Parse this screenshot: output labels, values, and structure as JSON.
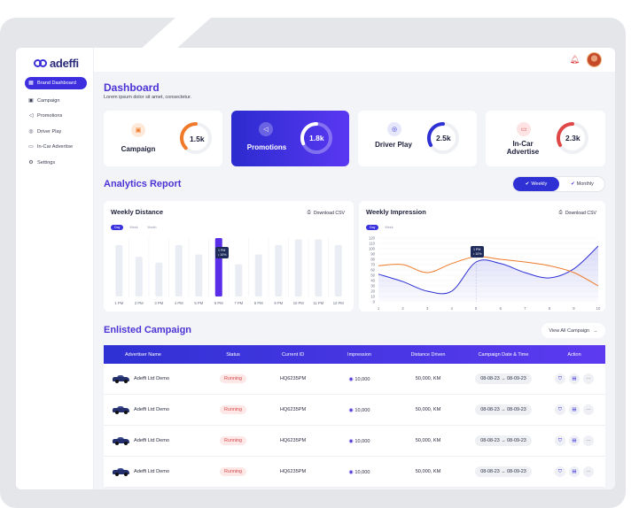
{
  "app": {
    "brand": "adeffi"
  },
  "sidebar": {
    "items": [
      {
        "label": "Brand Dashboard",
        "icon": "grid-icon",
        "active": true
      },
      {
        "label": "Campaign",
        "icon": "campaign-icon"
      },
      {
        "label": "Promotions",
        "icon": "megaphone-icon"
      },
      {
        "label": "Driver Play",
        "icon": "steering-icon"
      },
      {
        "label": "In-Car Advertise",
        "icon": "monitor-icon"
      },
      {
        "label": "Settings",
        "icon": "gear-icon"
      }
    ]
  },
  "header": {
    "title": "Dashboard",
    "subtitle": "Lorem ipsum dolor sit amet, consectetur."
  },
  "stats": [
    {
      "label": "Campaign",
      "value": "1.5k",
      "gauge_fraction": 0.6,
      "color": "#f07a2a"
    },
    {
      "label": "Promotions",
      "value": "1.8k",
      "gauge_fraction": 0.7,
      "color": "#ffffff"
    },
    {
      "label": "Driver Play",
      "value": "2.5k",
      "gauge_fraction": 0.55,
      "color": "#2f31d4"
    },
    {
      "label": "In-Car\nAdvertise",
      "value": "2.3k",
      "gauge_fraction": 0.55,
      "color": "#e04848"
    }
  ],
  "analytics": {
    "title": "Analytics Report",
    "toggle": {
      "weekly": "Weekly",
      "monthly": "Monthly"
    }
  },
  "weekly_distance": {
    "title": "Weekly Distance",
    "download": "Download CSV",
    "pills": [
      "Day",
      "Week",
      "Month"
    ],
    "tooltip": [
      "1 PM",
      "• 10%"
    ]
  },
  "weekly_impression": {
    "title": "Weekly Impression",
    "download": "Download CSV",
    "pills": [
      "Day",
      "Week"
    ],
    "tooltip": [
      "1 PM",
      "• 10%"
    ]
  },
  "chart_data": [
    {
      "type": "bar",
      "categories": [
        "1 PM",
        "2 PM",
        "3 PM",
        "4 PM",
        "5 PM",
        "6 PM",
        "7 PM",
        "8 PM",
        "9 PM",
        "10 PM",
        "11 PM",
        "12 PM"
      ],
      "values": [
        0.88,
        0.68,
        0.58,
        0.88,
        0.72,
        1.0,
        0.55,
        0.72,
        0.88,
        0.98,
        0.98,
        0.88
      ],
      "highlight_index": 5,
      "title": "Weekly Distance",
      "ylim": [
        0,
        1
      ]
    },
    {
      "type": "line",
      "x": [
        1,
        2,
        3,
        4,
        5,
        6,
        7,
        8,
        9,
        10
      ],
      "y_ticks": [
        0,
        10,
        20,
        30,
        40,
        50,
        60,
        70,
        80,
        90,
        100,
        110,
        120
      ],
      "series": [
        {
          "values": [
            52,
            38,
            20,
            20,
            75,
            72,
            55,
            45,
            62,
            105
          ],
          "color": "#2f31d4"
        },
        {
          "values": [
            68,
            70,
            55,
            72,
            85,
            80,
            75,
            68,
            55,
            30
          ],
          "color": "#f07a2a"
        }
      ],
      "title": "Weekly Impression",
      "ylim": [
        0,
        120
      ]
    }
  ],
  "campaigns": {
    "title": "Enlisted Campaign",
    "view_all": "View All Campaign",
    "columns": [
      "Advertiser Name",
      "Status",
      "Current ID",
      "Impression",
      "Distance Driven",
      "Campaign Date & Time",
      "Action"
    ],
    "rows": [
      {
        "name": "Adeffi Ltd Demo",
        "status": "Running",
        "id": "HQ6235PM",
        "impression": "10,000",
        "distance": "50,000, KM",
        "date": "08-08-23 → 08-09-23"
      },
      {
        "name": "Adeffi Ltd Demo",
        "status": "Running",
        "id": "HQ6235PM",
        "impression": "10,000",
        "distance": "50,000, KM",
        "date": "08-08-23 → 08-09-23"
      },
      {
        "name": "Adeffi Ltd Demo",
        "status": "Running",
        "id": "HQ6235PM",
        "impression": "10,000",
        "distance": "50,000, KM",
        "date": "08-08-23 → 08-09-23"
      },
      {
        "name": "Adeffi Ltd Demo",
        "status": "Running",
        "id": "HQ6235PM",
        "impression": "10,000",
        "distance": "50,000, KM",
        "date": "08-08-23 → 08-09-23"
      }
    ]
  }
}
